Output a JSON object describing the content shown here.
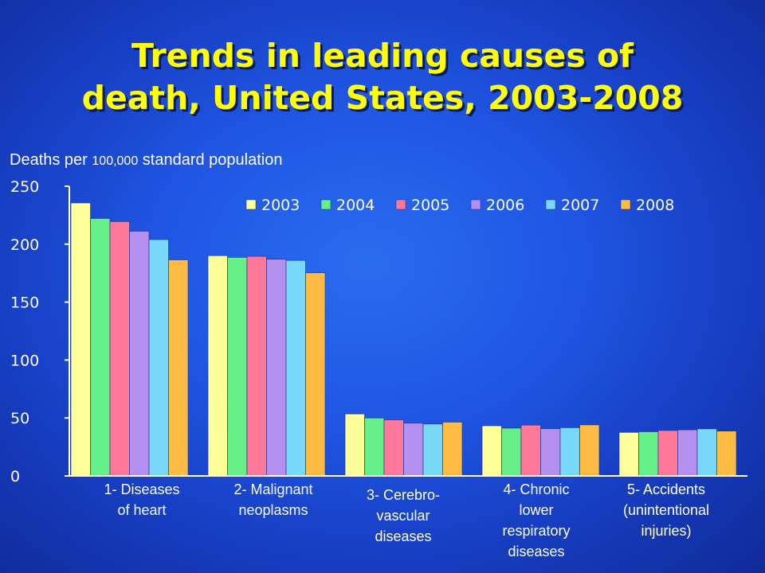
{
  "slide": {
    "title_line1": "Trends in leading causes of",
    "title_line2": "death, United States, 2003-2008",
    "ylabel_part1": "Deaths per ",
    "ylabel_part2": "100,000",
    "ylabel_part3": " standard population"
  },
  "chart_data": {
    "type": "bar",
    "title": "Trends in leading causes of death, United States, 2003-2008",
    "ylabel": "Deaths per 100,000 standard population",
    "ylim": [
      0,
      250
    ],
    "yticks": [
      "0",
      "50",
      "100",
      "150",
      "200",
      "250"
    ],
    "legend_position": "top-right",
    "grid": false,
    "categories": [
      [
        "1- Diseases",
        "of heart"
      ],
      [
        "2- Malignant",
        "neoplasms"
      ],
      [
        "3- Cerebro-",
        "vascular",
        "diseases"
      ],
      [
        "4- Chronic",
        "lower",
        "respiratory",
        "diseases"
      ],
      [
        "5- Accidents",
        "(unintentional",
        "injuries)"
      ]
    ],
    "series": [
      {
        "name": "2003",
        "color": "#ffff99",
        "values": [
          235.6,
          190.1,
          53.5,
          43.3,
          37.6
        ]
      },
      {
        "name": "2004",
        "color": "#66ee88",
        "values": [
          222.2,
          188.6,
          50.0,
          41.2,
          38.1
        ]
      },
      {
        "name": "2005",
        "color": "#ff7799",
        "values": [
          219.5,
          189.5,
          48.4,
          43.9,
          39.2
        ]
      },
      {
        "name": "2006",
        "color": "#b38ff0",
        "values": [
          211.2,
          187.0,
          45.6,
          40.8,
          39.8
        ]
      },
      {
        "name": "2007",
        "color": "#77d8f8",
        "values": [
          204.0,
          186.0,
          44.8,
          41.6,
          40.6
        ]
      },
      {
        "name": "2008",
        "color": "#ffbb44",
        "values": [
          186.5,
          175.3,
          46.4,
          44.0,
          38.7
        ]
      }
    ]
  }
}
